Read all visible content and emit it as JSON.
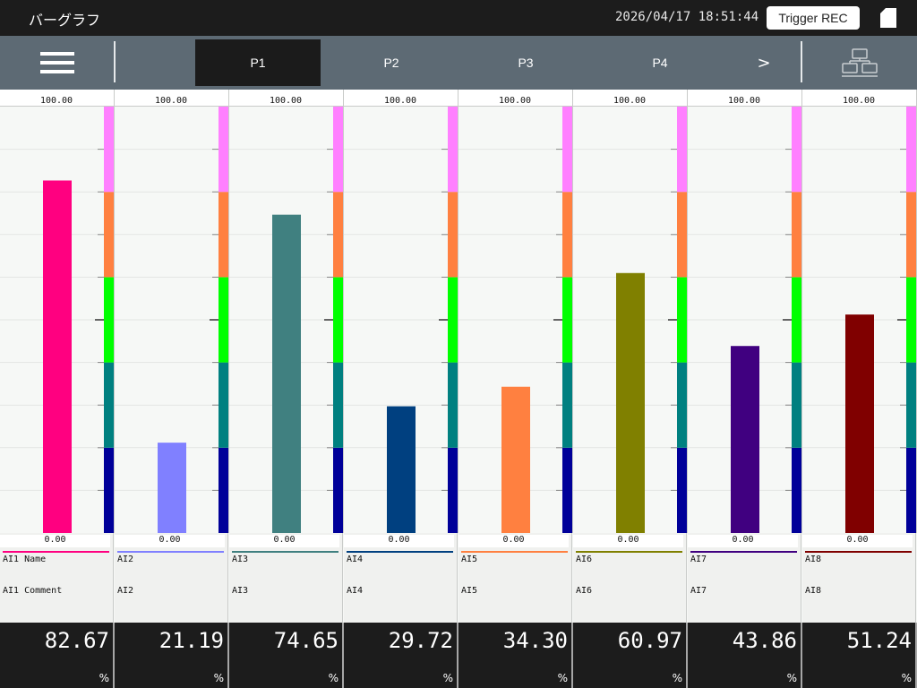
{
  "header": {
    "title": "バーグラフ",
    "datetime": "2026/04/17 18:51:44",
    "trigger_label": "Trigger REC"
  },
  "tabs": [
    {
      "label": "P1",
      "active": true
    },
    {
      "label": "P2",
      "active": false
    },
    {
      "label": "P3",
      "active": false
    },
    {
      "label": "P4",
      "active": false
    }
  ],
  "next_label": ">",
  "icons": {
    "menu": "hamburger-menu-icon",
    "file": "file-icon",
    "network": "network-icon"
  },
  "chart_data": {
    "type": "bar",
    "scale": {
      "max": 100,
      "min": 0,
      "max_label": "100.00",
      "min_label": "0.00"
    },
    "band_colors": [
      "#000099",
      "#008080",
      "#00ff00",
      "#ff8040",
      "#ff80ff"
    ],
    "channels": [
      {
        "name": "AI1 Name",
        "comment": "AI1 Comment",
        "value": 82.67,
        "display": "82.67",
        "unit": "%",
        "color": "#ff0080"
      },
      {
        "name": "AI2",
        "comment": "AI2",
        "value": 21.19,
        "display": "21.19",
        "unit": "%",
        "color": "#8080ff"
      },
      {
        "name": "AI3",
        "comment": "AI3",
        "value": 74.65,
        "display": "74.65",
        "unit": "%",
        "color": "#408080"
      },
      {
        "name": "AI4",
        "comment": "AI4",
        "value": 29.72,
        "display": "29.72",
        "unit": "%",
        "color": "#004080"
      },
      {
        "name": "AI5",
        "comment": "AI5",
        "value": 34.3,
        "display": "34.30",
        "unit": "%",
        "color": "#ff8040"
      },
      {
        "name": "AI6",
        "comment": "AI6",
        "value": 60.97,
        "display": "60.97",
        "unit": "%",
        "color": "#808000"
      },
      {
        "name": "AI7",
        "comment": "AI7",
        "value": 43.86,
        "display": "43.86",
        "unit": "%",
        "color": "#400080"
      },
      {
        "name": "AI8",
        "comment": "AI8",
        "value": 51.24,
        "display": "51.24",
        "unit": "%",
        "color": "#800000"
      }
    ]
  }
}
